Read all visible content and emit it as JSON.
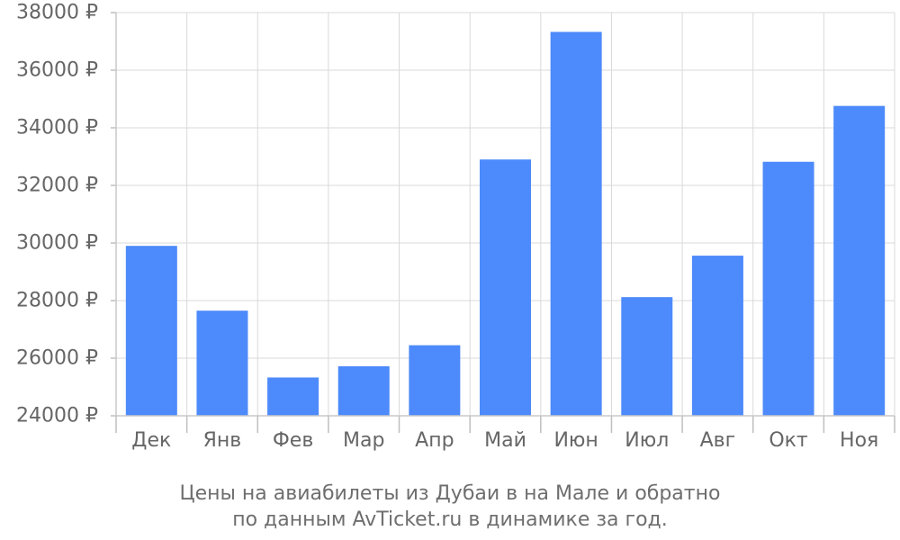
{
  "chart_data": {
    "type": "bar",
    "categories": [
      "Дек",
      "Янв",
      "Фев",
      "Мар",
      "Апр",
      "Май",
      "Июн",
      "Июл",
      "Авг",
      "Окт",
      "Ноя"
    ],
    "values": [
      29900,
      27650,
      25330,
      25720,
      26450,
      32900,
      37330,
      28120,
      29560,
      32820,
      34760
    ],
    "ylim": [
      24000,
      38000
    ],
    "y_ticks": [
      "24000 ₽",
      "26000 ₽",
      "28000 ₽",
      "30000 ₽",
      "32000 ₽",
      "34000 ₽",
      "36000 ₽",
      "38000 ₽"
    ],
    "y_tick_values": [
      24000,
      26000,
      28000,
      30000,
      32000,
      34000,
      36000,
      38000
    ],
    "grid": true,
    "bar_color": "#4d8afb",
    "caption": [
      "Цены на авиабилеты из Дубаи в на Мале и обратно",
      "по данным AvTicket.ru в динамике за год."
    ]
  }
}
